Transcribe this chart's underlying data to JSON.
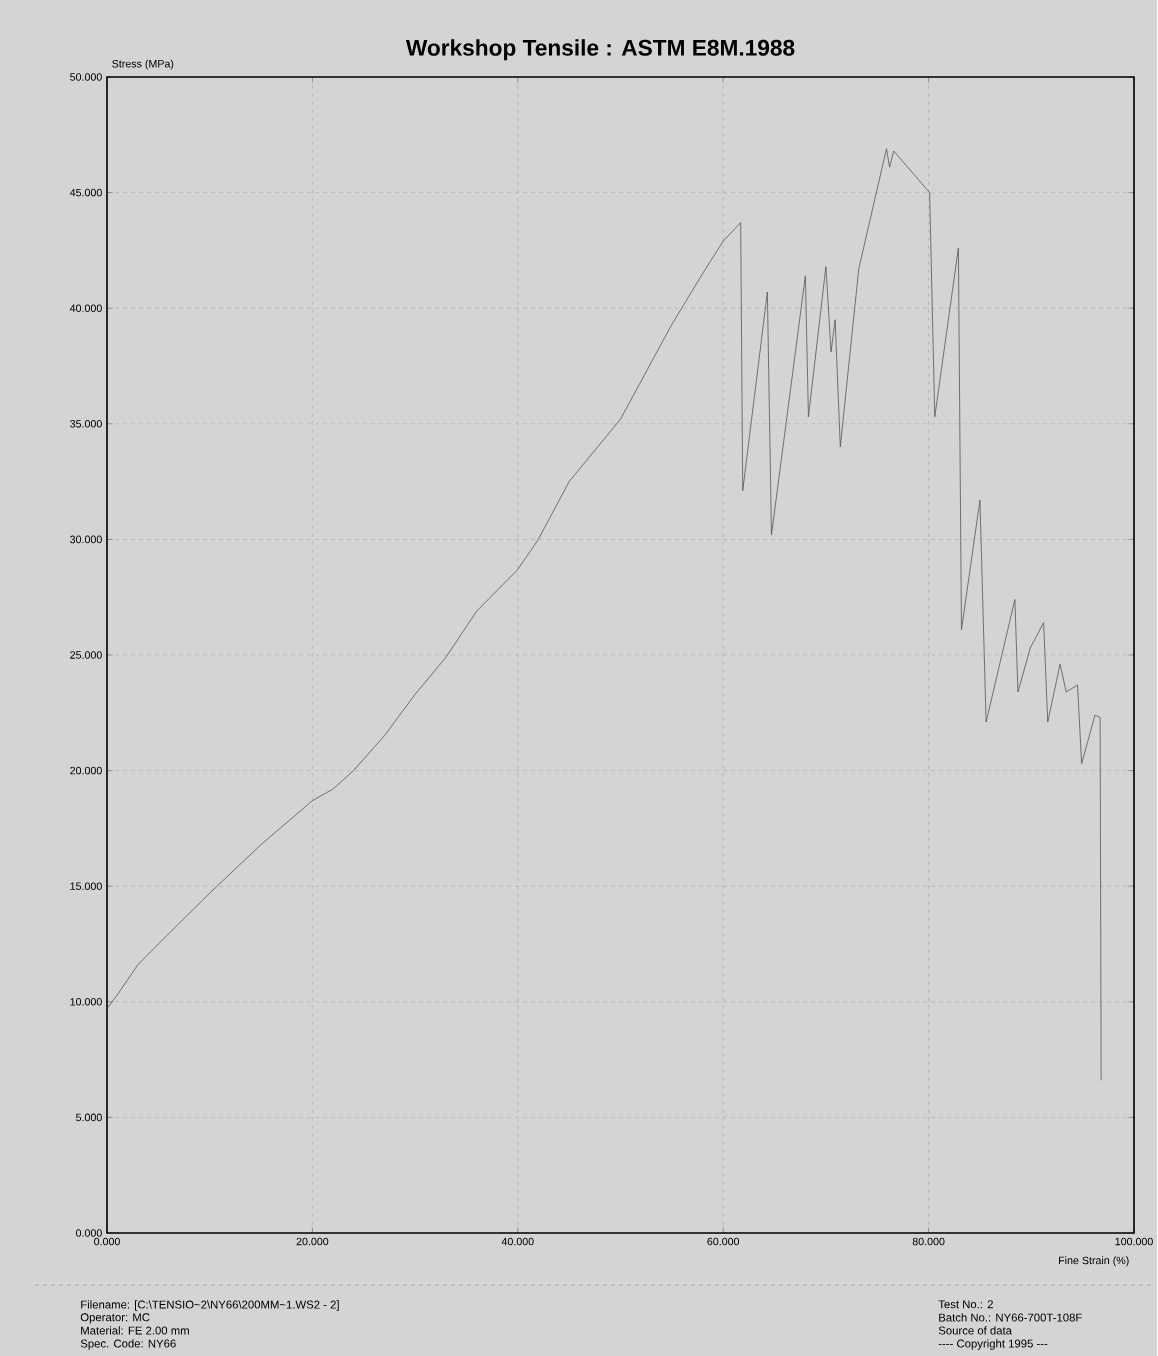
{
  "chart_data": {
    "type": "line",
    "title": "Workshop Tensile :  ASTM E8M.1988",
    "xlabel": "Fine Strain (%)",
    "ylabel": "Stress (MPa)",
    "x": [
      0,
      1,
      3,
      5,
      10,
      15,
      20,
      22,
      24,
      27,
      30,
      33,
      36,
      40,
      42,
      45,
      50,
      55,
      58,
      60.0,
      61.7,
      61.9,
      64.3,
      64.7,
      68.0,
      68.3,
      70.0,
      70.5,
      70.9,
      71.4,
      73.2,
      75.9,
      76.2,
      76.6,
      80.1,
      80.6,
      82.9,
      83.2,
      85.0,
      85.6,
      88.4,
      88.7,
      89.9,
      91.2,
      91.6,
      92.8,
      93.4,
      94.5,
      94.9,
      96.2,
      96.7,
      96.8
    ],
    "values": [
      9.7,
      10.3,
      11.6,
      12.5,
      14.7,
      16.8,
      18.7,
      19.2,
      20.0,
      21.5,
      23.3,
      24.9,
      26.9,
      28.7,
      30.0,
      32.5,
      35.2,
      39.3,
      41.5,
      42.9,
      43.7,
      32.1,
      40.7,
      30.2,
      41.4,
      35.3,
      41.8,
      38.1,
      39.5,
      34.0,
      41.7,
      46.9,
      46.1,
      46.8,
      45.0,
      35.3,
      42.6,
      26.1,
      31.7,
      22.1,
      27.4,
      23.4,
      25.3,
      26.4,
      22.1,
      24.6,
      23.4,
      23.7,
      20.3,
      22.4,
      22.3,
      6.6
    ],
    "color": "#555555",
    "line_style": "solid",
    "marker": "none",
    "grid": true,
    "xlim": [
      0,
      100
    ],
    "ylim": [
      0,
      50
    ],
    "xticks": [
      {
        "value": 0,
        "label": "0.000"
      },
      {
        "value": 20,
        "label": "20.000"
      },
      {
        "value": 40,
        "label": "40.000"
      },
      {
        "value": 60,
        "label": "60.000"
      },
      {
        "value": 80,
        "label": "80.000"
      },
      {
        "value": 100,
        "label": "100.000"
      }
    ],
    "yticks": [
      {
        "value": 0,
        "label": "0.000"
      },
      {
        "value": 5,
        "label": "5.000"
      },
      {
        "value": 10,
        "label": "10.000"
      },
      {
        "value": 15,
        "label": "15.000"
      },
      {
        "value": 20,
        "label": "20.000"
      },
      {
        "value": 25,
        "label": "25.000"
      },
      {
        "value": 30,
        "label": "30.000"
      },
      {
        "value": 35,
        "label": "35.000"
      },
      {
        "value": 40,
        "label": "40.000"
      },
      {
        "value": 45,
        "label": "45.000"
      },
      {
        "value": 50,
        "label": "50.000"
      }
    ],
    "annotations": [
      "Filename: [C:\\TENSIO~2\\NY66\\200MM~1.WS2 - 2]",
      "Operator: MC",
      "Material: FE 2.00 mm",
      "Spec. Code: NY66",
      "Test No.: 2",
      "Batch No.: NY66-700T-108F",
      "Source of data",
      "---- Copyright 1995 ---"
    ]
  }
}
